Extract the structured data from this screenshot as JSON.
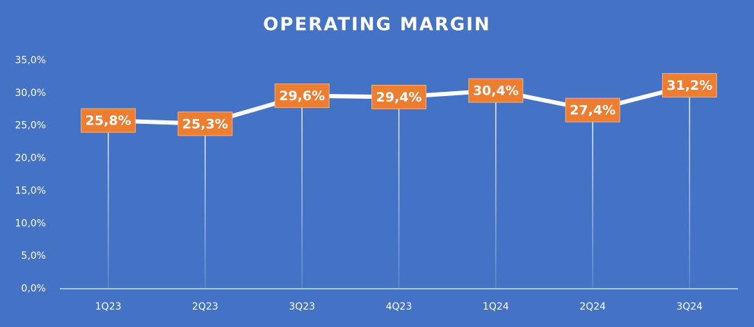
{
  "chart_data": {
    "type": "line",
    "title": "OPERATING MARGIN",
    "categories": [
      "1Q23",
      "2Q23",
      "3Q23",
      "4Q23",
      "1Q24",
      "2Q24",
      "3Q24"
    ],
    "values": [
      25.8,
      25.3,
      29.6,
      29.4,
      30.4,
      27.4,
      31.2
    ],
    "value_labels": [
      "25,8%",
      "25,3%",
      "29,6%",
      "29,4%",
      "30,4%",
      "27,4%",
      "31,2%"
    ],
    "color": "#ffffff",
    "ylim": [
      0,
      35
    ],
    "yticks": [
      {
        "value": 0,
        "label": "0,0%"
      },
      {
        "value": 5,
        "label": "5,0%"
      },
      {
        "value": 10,
        "label": "10,0%"
      },
      {
        "value": 15,
        "label": "15,0%"
      },
      {
        "value": 20,
        "label": "20,0%"
      },
      {
        "value": 25,
        "label": "25,0%"
      },
      {
        "value": 30,
        "label": "30,0%"
      },
      {
        "value": 35,
        "label": "35,0%"
      }
    ],
    "grid": false
  }
}
